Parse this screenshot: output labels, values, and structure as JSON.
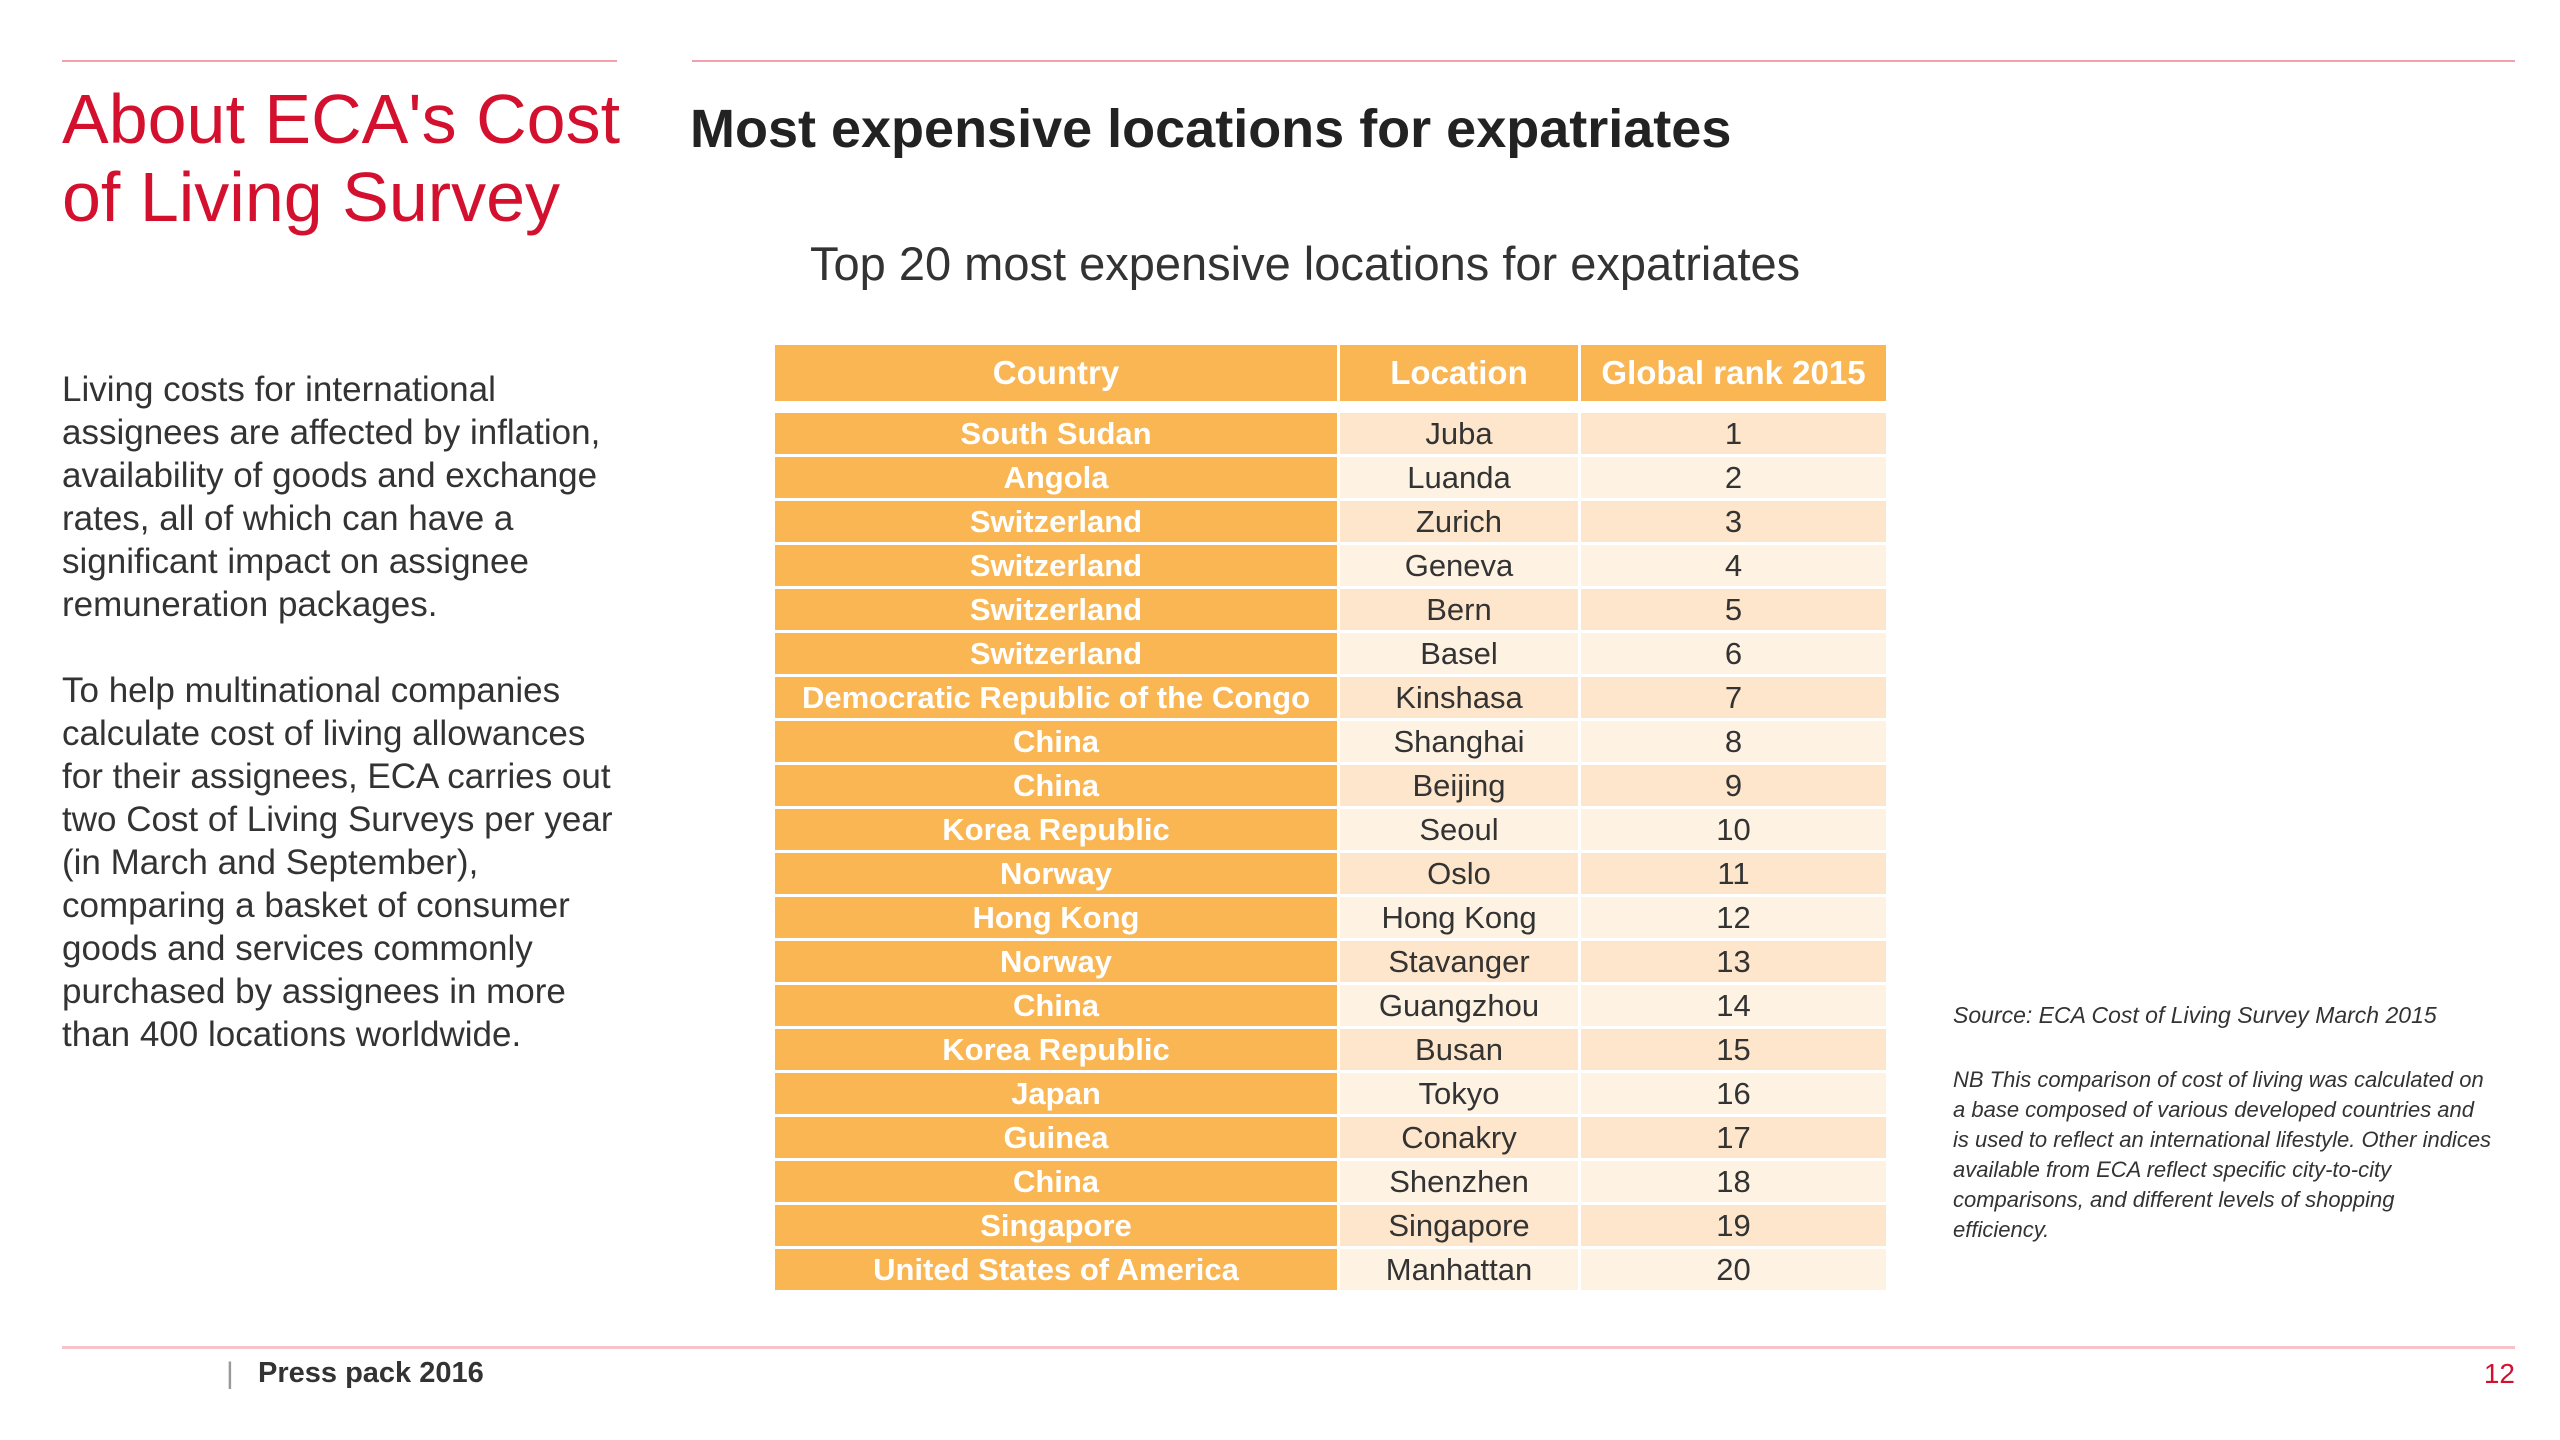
{
  "sidebar": {
    "title": "About ECA's Cost of Living Survey",
    "paragraph1": "Living costs for international assignees are affected by inflation, availability of goods and exchange rates, all of which can have a significant impact on assignee remuneration packages.",
    "paragraph2": "To help multinational companies calculate cost of living allowances for their assignees, ECA carries out two Cost of Living Surveys per year (in March and September), comparing a basket of consumer goods and services commonly purchased by assignees in more than 400 locations worldwide."
  },
  "main": {
    "title": "Most expensive locations for expatriates",
    "table_caption": "Top 20 most expensive locations for expatriates"
  },
  "table": {
    "headers": [
      "Country",
      "Location",
      "Global rank 2015"
    ],
    "rows": [
      {
        "country": "South Sudan",
        "location": "Juba",
        "rank": "1"
      },
      {
        "country": "Angola",
        "location": "Luanda",
        "rank": "2"
      },
      {
        "country": "Switzerland",
        "location": "Zurich",
        "rank": "3"
      },
      {
        "country": "Switzerland",
        "location": "Geneva",
        "rank": "4"
      },
      {
        "country": "Switzerland",
        "location": "Bern",
        "rank": "5"
      },
      {
        "country": "Switzerland",
        "location": "Basel",
        "rank": "6"
      },
      {
        "country": "Democratic Republic of the Congo",
        "location": "Kinshasa",
        "rank": "7"
      },
      {
        "country": "China",
        "location": "Shanghai",
        "rank": "8"
      },
      {
        "country": "China",
        "location": "Beijing",
        "rank": "9"
      },
      {
        "country": "Korea Republic",
        "location": "Seoul",
        "rank": "10"
      },
      {
        "country": "Norway",
        "location": "Oslo",
        "rank": "11"
      },
      {
        "country": "Hong Kong",
        "location": "Hong Kong",
        "rank": "12"
      },
      {
        "country": "Norway",
        "location": "Stavanger",
        "rank": "13"
      },
      {
        "country": "China",
        "location": "Guangzhou",
        "rank": "14"
      },
      {
        "country": "Korea Republic",
        "location": "Busan",
        "rank": "15"
      },
      {
        "country": "Japan",
        "location": "Tokyo",
        "rank": "16"
      },
      {
        "country": "Guinea",
        "location": "Conakry",
        "rank": "17"
      },
      {
        "country": "China",
        "location": "Shenzhen",
        "rank": "18"
      },
      {
        "country": "Singapore",
        "location": "Singapore",
        "rank": "19"
      },
      {
        "country": "United States of America",
        "location": "Manhattan",
        "rank": "20"
      }
    ]
  },
  "notes": {
    "source": "Source: ECA Cost of Living Survey March 2015",
    "nb": "NB This comparison of cost of living was calculated on a base composed of various developed countries and is used to reflect an international lifestyle. Other indices available from ECA reflect specific city-to-city comparisons, and different levels of shopping efficiency."
  },
  "footer": {
    "separator": "|",
    "label": "Press pack 2016",
    "page_number": "12"
  },
  "colors": {
    "accent_red": "#d3102e",
    "table_orange": "#f9b653",
    "cell_light": "#fde6cb",
    "cell_lighter": "#fef2e3",
    "rule_pink": "#f2a1ab"
  }
}
